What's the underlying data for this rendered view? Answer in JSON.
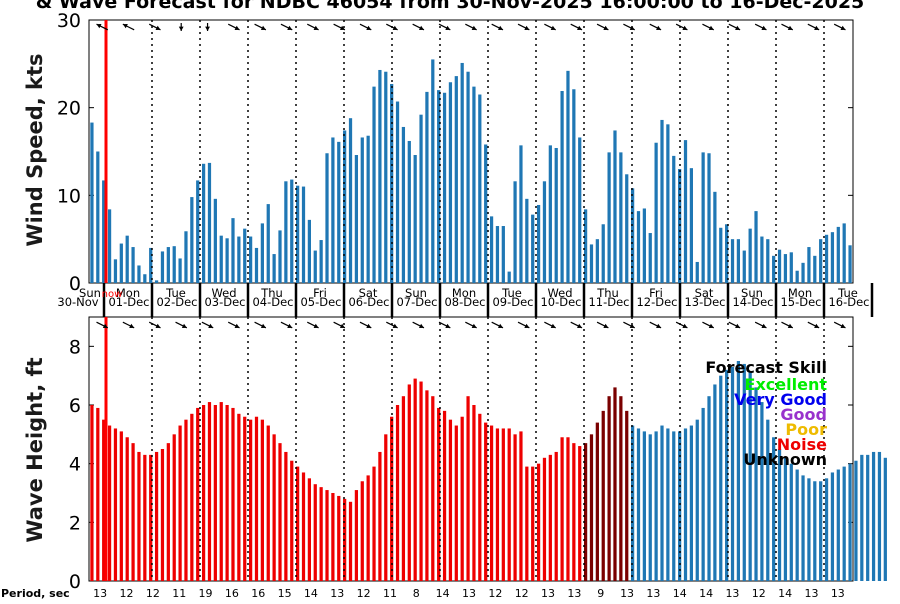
{
  "chart_data": [
    {
      "type": "bar",
      "title": "& Wave Forecast for NDBC 46054 from 30-Nov-2025 16:00:00 to 16-Dec-2025",
      "ylabel": "Wind Speed, kts",
      "ylim": [
        0,
        30
      ],
      "yticks": [
        0,
        10,
        20,
        30
      ],
      "bar_color": "#1f77b4",
      "now_line_color": "#ff0000",
      "values": [
        18.3,
        15.0,
        11.7,
        8.4,
        2.7,
        4.5,
        5.4,
        4.1,
        2.0,
        1.0,
        4.0,
        0.3,
        3.6,
        4.1,
        4.2,
        2.8,
        5.9,
        9.8,
        11.7,
        13.6,
        13.7,
        9.6,
        5.4,
        5.1,
        7.4,
        5.3,
        6.2,
        5.3,
        4.0,
        6.8,
        9.0,
        3.3,
        6.0,
        11.6,
        11.8,
        11.1,
        11.0,
        7.2,
        3.7,
        4.9,
        14.8,
        16.6,
        16.1,
        17.4,
        18.8,
        14.6,
        16.6,
        16.8,
        22.4,
        24.3,
        24.1,
        22.7,
        20.7,
        17.8,
        16.2,
        14.6,
        19.2,
        21.8,
        25.5,
        22.0,
        21.7,
        22.9,
        23.6,
        25.1,
        24.1,
        22.4,
        21.5,
        15.8,
        7.6,
        6.5,
        6.5,
        1.3,
        11.6,
        15.7,
        9.6,
        7.8,
        8.9,
        11.6,
        15.7,
        15.4,
        21.9,
        24.2,
        22.1,
        16.6,
        8.4,
        4.4,
        5.0,
        6.7,
        14.9,
        17.4,
        14.9,
        12.4,
        10.8,
        8.2,
        8.5,
        5.7,
        16.0,
        18.6,
        18.1,
        14.5,
        13.0,
        16.3,
        13.1,
        2.4,
        14.9,
        14.8,
        10.4,
        6.3,
        6.7,
        5.0,
        5.0,
        3.7,
        6.2,
        8.2,
        5.3,
        5.0,
        3.1,
        3.8,
        3.3,
        3.5,
        1.4,
        2.3,
        4.1,
        3.1,
        5.0,
        5.5,
        5.8,
        6.4,
        6.8,
        4.3
      ],
      "directions": [
        225,
        225,
        180,
        180,
        225,
        225,
        90,
        90,
        45,
        90,
        90,
        90,
        45,
        90,
        90,
        90,
        45,
        90,
        45,
        45,
        45,
        45,
        45,
        45,
        45,
        45,
        45,
        45,
        45,
        45,
        45,
        45,
        45,
        45,
        45,
        45,
        45,
        45,
        45,
        45,
        45,
        45,
        45,
        45,
        45,
        45,
        45,
        45,
        45,
        45,
        45,
        45,
        45,
        45,
        45,
        45,
        45,
        45,
        45,
        45,
        45,
        45,
        45,
        45,
        45,
        45,
        45,
        45,
        45,
        45,
        45,
        45,
        45,
        45,
        45,
        45,
        45,
        45,
        45,
        45,
        45,
        45,
        45,
        45,
        45,
        45,
        45,
        45,
        45,
        45,
        45,
        45,
        45,
        45,
        45,
        45,
        45,
        45,
        45,
        45,
        45,
        45,
        45,
        45,
        45,
        45,
        45,
        45,
        45,
        45,
        45,
        45,
        45,
        45,
        45,
        45,
        45,
        45,
        45,
        45,
        45,
        45,
        45,
        45,
        45,
        45,
        45,
        45
      ]
    },
    {
      "type": "bar",
      "ylabel": "Wave Height, ft",
      "ylim": [
        0,
        9
      ],
      "yticks": [
        0,
        2,
        4,
        6,
        8
      ],
      "values": [
        6.0,
        5.9,
        5.5,
        5.3,
        5.2,
        5.1,
        4.9,
        4.7,
        4.4,
        4.3,
        4.3,
        4.4,
        4.5,
        4.7,
        5.0,
        5.3,
        5.5,
        5.7,
        5.9,
        6.0,
        6.1,
        6.0,
        6.1,
        6.0,
        5.9,
        5.7,
        5.6,
        5.5,
        5.6,
        5.5,
        5.3,
        5.0,
        4.7,
        4.4,
        4.1,
        3.9,
        3.7,
        3.5,
        3.3,
        3.2,
        3.1,
        3.0,
        2.9,
        2.8,
        2.7,
        3.1,
        3.4,
        3.6,
        3.9,
        4.4,
        5.0,
        5.6,
        6.0,
        6.3,
        6.7,
        6.9,
        6.8,
        6.5,
        6.3,
        5.9,
        5.8,
        5.5,
        5.3,
        5.6,
        6.3,
        6.0,
        5.7,
        5.4,
        5.3,
        5.2,
        5.2,
        5.2,
        5.0,
        5.1,
        3.9,
        3.9,
        4.0,
        4.2,
        4.3,
        4.4,
        4.9,
        4.9,
        4.7,
        4.6,
        4.7,
        5.0,
        5.4,
        5.8,
        6.3,
        6.6,
        6.3,
        5.8,
        5.3,
        5.2,
        5.1,
        5.0,
        5.1,
        5.3,
        5.2,
        5.1,
        5.1,
        5.2,
        5.3,
        5.5,
        5.9,
        6.3,
        6.7,
        7.0,
        7.2,
        7.3,
        7.5,
        7.4,
        7.1,
        6.6,
        6.1,
        5.5,
        4.9,
        4.5,
        4.2,
        4.0,
        3.8,
        3.6,
        3.5,
        3.4,
        3.4,
        3.5,
        3.7,
        3.8,
        3.9,
        4.0,
        4.1,
        4.3,
        4.3,
        4.4,
        4.4,
        4.2
      ],
      "skill": [
        "noise",
        "noise",
        "noise",
        "noise",
        "noise",
        "noise",
        "noise",
        "noise",
        "noise",
        "noise",
        "noise",
        "noise",
        "noise",
        "noise",
        "noise",
        "noise",
        "noise",
        "noise",
        "noise",
        "noise",
        "noise",
        "noise",
        "noise",
        "noise",
        "noise",
        "noise",
        "noise",
        "noise",
        "noise",
        "noise",
        "noise",
        "noise",
        "noise",
        "noise",
        "noise",
        "noise",
        "noise",
        "noise",
        "noise",
        "noise",
        "noise",
        "noise",
        "noise",
        "noise",
        "noise",
        "noise",
        "noise",
        "noise",
        "noise",
        "noise",
        "noise",
        "noise",
        "noise",
        "noise",
        "noise",
        "noise",
        "noise",
        "noise",
        "noise",
        "noise",
        "noise",
        "noise",
        "noise",
        "noise",
        "noise",
        "noise",
        "noise",
        "noise",
        "noise",
        "noise",
        "noise",
        "noise",
        "noise",
        "noise",
        "noise",
        "noise",
        "noise",
        "noise",
        "noise",
        "noise",
        "noise",
        "noise",
        "noise",
        "noise",
        "unknown",
        "unknown",
        "unknown",
        "unknown",
        "unknown",
        "unknown",
        "unknown",
        "unknown",
        "excellent",
        "excellent",
        "excellent",
        "excellent",
        "excellent",
        "excellent",
        "excellent",
        "excellent",
        "excellent",
        "excellent",
        "excellent",
        "excellent",
        "excellent",
        "excellent",
        "excellent",
        "excellent",
        "excellent",
        "excellent",
        "excellent",
        "excellent",
        "excellent",
        "excellent",
        "excellent",
        "excellent",
        "excellent",
        "excellent",
        "excellent",
        "excellent",
        "excellent",
        "excellent",
        "excellent",
        "excellent",
        "excellent",
        "excellent",
        "excellent",
        "excellent",
        "excellent",
        "excellent",
        "excellent",
        "excellent",
        "excellent",
        "excellent",
        "excellent",
        "excellent"
      ],
      "skill_colors": {
        "excellent": "#1f77b4",
        "noise": "#ee0000",
        "unknown": "#7a0000"
      },
      "legend": {
        "title": "Forecast Skill",
        "items": [
          {
            "label": "Excellent",
            "color": "#00ee00"
          },
          {
            "label": "Very Good",
            "color": "#0000ee"
          },
          {
            "label": "Good",
            "color": "#9932cc"
          },
          {
            "label": "Poor",
            "color": "#eebb00"
          },
          {
            "label": "Noise",
            "color": "#ee0000"
          },
          {
            "label": "Unknown",
            "color": "#000000"
          }
        ],
        "placement": "right"
      }
    }
  ],
  "day_labels": [
    {
      "day": "Sun",
      "date": "30-Nov"
    },
    {
      "day": "Mon",
      "date": "01-Dec"
    },
    {
      "day": "Tue",
      "date": "02-Dec"
    },
    {
      "day": "Wed",
      "date": "03-Dec"
    },
    {
      "day": "Thu",
      "date": "04-Dec"
    },
    {
      "day": "Fri",
      "date": "05-Dec"
    },
    {
      "day": "Sat",
      "date": "06-Dec"
    },
    {
      "day": "Sun",
      "date": "07-Dec"
    },
    {
      "day": "Mon",
      "date": "08-Dec"
    },
    {
      "day": "Tue",
      "date": "09-Dec"
    },
    {
      "day": "Wed",
      "date": "10-Dec"
    },
    {
      "day": "Thu",
      "date": "11-Dec"
    },
    {
      "day": "Fri",
      "date": "12-Dec"
    },
    {
      "day": "Sat",
      "date": "13-Dec"
    },
    {
      "day": "Sun",
      "date": "14-Dec"
    },
    {
      "day": "Mon",
      "date": "15-Dec"
    },
    {
      "day": "Tue",
      "date": "16-Dec"
    }
  ],
  "now_label": "now",
  "period_label": "Period, sec",
  "periods": [
    "13",
    "12",
    "12",
    "11",
    "19",
    "16",
    "16",
    "15",
    "14",
    "13",
    "12",
    "11",
    "8",
    "14",
    "13",
    "12",
    "12",
    "13",
    "13",
    "9",
    "13",
    "13",
    "14",
    "14",
    "13",
    "12",
    "14",
    "13",
    "13"
  ]
}
